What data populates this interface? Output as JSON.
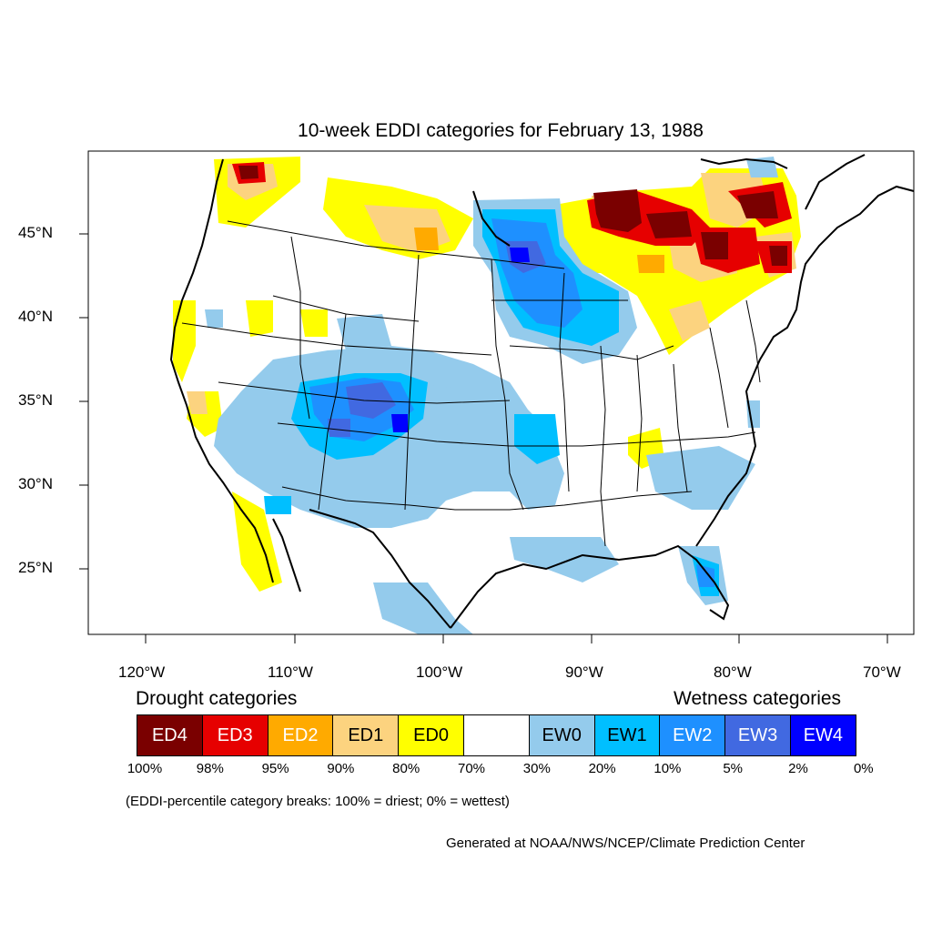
{
  "title": "10-week EDDI categories for February 13, 1988",
  "lat_ticks": [
    "45°N",
    "40°N",
    "35°N",
    "30°N",
    "25°N"
  ],
  "lon_ticks": [
    "120°W",
    "110°W",
    "100°W",
    "90°W",
    "80°W",
    "70°W"
  ],
  "legend": {
    "drought_heading": "Drought categories",
    "wetness_heading": "Wetness categories",
    "categories": [
      {
        "label": "ED4",
        "color": "#7a0000",
        "text_color": "#ffffff"
      },
      {
        "label": "ED3",
        "color": "#e60000",
        "text_color": "#ffffff"
      },
      {
        "label": "ED2",
        "color": "#ffaa00",
        "text_color": "#ffffff"
      },
      {
        "label": "ED1",
        "color": "#fcd37f",
        "text_color": "#000000"
      },
      {
        "label": "ED0",
        "color": "#ffff00",
        "text_color": "#000000"
      },
      {
        "label": "",
        "color": "#ffffff",
        "text_color": "#000000"
      },
      {
        "label": "EW0",
        "color": "#94cbec",
        "text_color": "#000000"
      },
      {
        "label": "EW1",
        "color": "#00bfff",
        "text_color": "#000000"
      },
      {
        "label": "EW2",
        "color": "#1e90ff",
        "text_color": "#ffffff"
      },
      {
        "label": "EW3",
        "color": "#4169e1",
        "text_color": "#ffffff"
      },
      {
        "label": "EW4",
        "color": "#0000ff",
        "text_color": "#ffffff"
      }
    ],
    "percentiles": [
      "100%",
      "98%",
      "95%",
      "90%",
      "80%",
      "70%",
      "30%",
      "20%",
      "10%",
      "5%",
      "2%",
      "0%"
    ]
  },
  "note": "(EDDI-percentile category breaks: 100% = driest; 0% = wettest)",
  "credit": "Generated at NOAA/NWS/NCEP/Climate Prediction Center"
}
